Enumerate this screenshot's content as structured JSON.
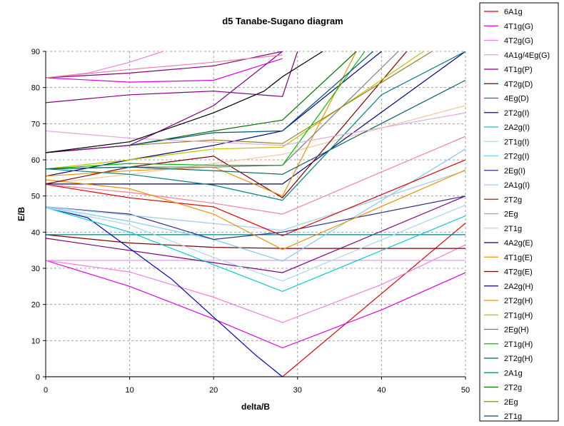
{
  "chart_data": {
    "type": "line",
    "title": "d5 Tanabe-Sugano diagram",
    "xlabel": "delta/B",
    "ylabel": "E/B",
    "xlim": [
      0,
      50
    ],
    "ylim": [
      0,
      90
    ],
    "xticks": [
      0,
      10,
      20,
      30,
      40,
      50
    ],
    "yticks": [
      0,
      10,
      20,
      30,
      40,
      50,
      60,
      70,
      80,
      90
    ],
    "grid": true,
    "legend_position": "right",
    "series": [
      {
        "name": "6A1g",
        "color": "#e00000",
        "x": [
          0,
          28.2,
          50
        ],
        "y": [
          0,
          0,
          42.5
        ]
      },
      {
        "name": "4T1g(G)",
        "color": "#e000e0",
        "x": [
          0,
          10,
          20,
          28.2,
          40,
          50
        ],
        "y": [
          32.2,
          25,
          16,
          8,
          18.5,
          28.8
        ]
      },
      {
        "name": "4T2g(G)",
        "color": "#f080e0",
        "x": [
          0,
          10,
          20,
          28.2,
          40,
          50
        ],
        "y": [
          32.2,
          29,
          22,
          15,
          25.5,
          36.5
        ]
      },
      {
        "name": "4A1g/4Eg(G)",
        "color": "#d8a0e8",
        "x": [
          0,
          28.2,
          50
        ],
        "y": [
          32.2,
          32.2,
          32.2
        ]
      },
      {
        "name": "4T1g(P)",
        "color": "#800080",
        "x": [
          0,
          28.2,
          50
        ],
        "y": [
          38.3,
          28.8,
          50
        ]
      },
      {
        "name": "4T2g(D)",
        "color": "#800000",
        "x": [
          0,
          10,
          20,
          28.2,
          50
        ],
        "y": [
          39.3,
          37,
          35.8,
          35.5,
          35.5
        ]
      },
      {
        "name": "4Eg(D)",
        "color": "#008080",
        "x": [
          0,
          28.2,
          50
        ],
        "y": [
          39.3,
          39.3,
          39.3
        ]
      },
      {
        "name": "2T2g(I)",
        "color": "#0000c0",
        "x": [
          0,
          5,
          15,
          25,
          28.2
        ],
        "y": [
          46.8,
          44,
          27,
          6,
          0
        ]
      },
      {
        "name": "2A2g(I)",
        "color": "#00c8d8",
        "x": [
          0,
          10,
          20,
          28.2,
          50
        ],
        "y": [
          46.8,
          40,
          31,
          23.6,
          44.5
        ]
      },
      {
        "name": "2T1g(I)",
        "color": "#a8d8f0",
        "x": [
          0,
          10,
          20,
          28.2,
          50
        ],
        "y": [
          46.8,
          42,
          33,
          26.5,
          47.5
        ]
      },
      {
        "name": "2T2g(I)",
        "color": "#80c8f0",
        "x": [
          0,
          10,
          20,
          28.2,
          50
        ],
        "y": [
          47,
          43,
          38,
          32,
          63
        ]
      },
      {
        "name": "2Eg(I)",
        "color": "#303090",
        "x": [
          0,
          10,
          20,
          28.2,
          50
        ],
        "y": [
          47,
          45,
          38,
          40,
          50
        ]
      },
      {
        "name": "2A1g(I)",
        "color": "#a0c8f0",
        "x": [
          0,
          28.2,
          50
        ],
        "y": [
          47,
          40.5,
          57
        ]
      },
      {
        "name": "2T2g",
        "color": "#e00000",
        "x": [
          0,
          10,
          20,
          28.2,
          50
        ],
        "y": [
          53.2,
          49.5,
          47,
          39,
          60
        ]
      },
      {
        "name": "2Eg",
        "color": "#f080a0",
        "x": [
          0,
          10,
          20,
          28.2,
          50
        ],
        "y": [
          53.2,
          51,
          48,
          45,
          66.5
        ]
      },
      {
        "name": "2T1g",
        "color": "#f0c8a0",
        "x": [
          0,
          10,
          20,
          28.2,
          50
        ],
        "y": [
          53.5,
          56,
          59,
          61.5,
          75
        ]
      },
      {
        "name": "4A2g(E)",
        "color": "#000080",
        "x": [
          0,
          28.2,
          50
        ],
        "y": [
          53.3,
          53.3,
          90
        ]
      },
      {
        "name": "4T1g(E)",
        "color": "#f09000",
        "x": [
          0,
          10,
          20,
          28.2,
          50
        ],
        "y": [
          54.5,
          52,
          45,
          35.2,
          57.2
        ]
      },
      {
        "name": "4T2g(E)",
        "color": "#800000",
        "x": [
          0,
          10,
          20,
          28.2,
          43
        ],
        "y": [
          53.3,
          58,
          61,
          49.5,
          90
        ]
      },
      {
        "name": "2A2g(H)",
        "color": "#000080",
        "x": [
          0,
          10,
          20,
          28.2,
          40
        ],
        "y": [
          55.5,
          60,
          64,
          68,
          90
        ]
      },
      {
        "name": "2T2g(H)",
        "color": "#f09000",
        "x": [
          0,
          10,
          20,
          28.2,
          37
        ],
        "y": [
          55.5,
          57,
          58,
          50,
          90
        ]
      },
      {
        "name": "2T1g(H)",
        "color": "#c0c000",
        "x": [
          0,
          10,
          20,
          28.2,
          45
        ],
        "y": [
          57.5,
          60,
          63,
          63.5,
          90
        ]
      },
      {
        "name": "2Eg(H)",
        "color": "#808080",
        "x": [
          0,
          10,
          20,
          28.2,
          42
        ],
        "y": [
          57.5,
          58,
          58,
          58.5,
          90
        ]
      },
      {
        "name": "2T1g(H)",
        "color": "#00c000",
        "x": [
          0,
          10,
          20,
          28.2,
          38
        ],
        "y": [
          57.5,
          59,
          58.5,
          58.5,
          90
        ]
      },
      {
        "name": "2T2g(H)",
        "color": "#006060",
        "x": [
          0,
          10,
          20,
          28.2,
          50
        ],
        "y": [
          57.5,
          58,
          57,
          56,
          82
        ]
      },
      {
        "name": "2A1g",
        "color": "#008080",
        "x": [
          0,
          10,
          20,
          28.2,
          40,
          50
        ],
        "y": [
          57.5,
          56,
          53,
          48.8,
          78,
          90
        ]
      },
      {
        "name": "2T2g",
        "color": "#007000",
        "x": [
          0,
          10,
          20,
          28.2,
          37
        ],
        "y": [
          62,
          64,
          68,
          71,
          90
        ]
      },
      {
        "name": "2Eg",
        "color": "#908020",
        "x": [
          0,
          10,
          20,
          28.2,
          46
        ],
        "y": [
          62,
          64,
          65.5,
          64.5,
          90
        ]
      },
      {
        "name": "2T1g",
        "color": "#005080",
        "x": [
          0,
          10,
          20,
          28.2,
          39
        ],
        "y": [
          62,
          64,
          67.5,
          68,
          90
        ]
      },
      {
        "name": "",
        "color": "#e0a8e0",
        "x": [
          0,
          10,
          28.2,
          50
        ],
        "y": [
          68,
          66,
          64,
          73
        ]
      },
      {
        "name": "",
        "color": "#800080",
        "x": [
          0,
          10,
          20,
          28.2,
          30
        ],
        "y": [
          75.8,
          78,
          79,
          77.5,
          90
        ]
      },
      {
        "name": "",
        "color": "#800080",
        "x": [
          0,
          10,
          20,
          28.2
        ],
        "y": [
          62,
          64,
          75,
          90
        ]
      },
      {
        "name": "",
        "color": "#000000",
        "x": [
          0,
          10,
          20,
          26,
          28.2,
          33
        ],
        "y": [
          62,
          65,
          73,
          79,
          83,
          90
        ]
      },
      {
        "name": "",
        "color": "#e000e0",
        "x": [
          0,
          10,
          20,
          28.2
        ],
        "y": [
          82.7,
          81.5,
          82,
          88
        ]
      },
      {
        "name": "",
        "color": "#800080",
        "x": [
          0,
          10,
          20,
          28.2
        ],
        "y": [
          82.7,
          84,
          86,
          90
        ]
      },
      {
        "name": "",
        "color": "#f080e0",
        "x": [
          0,
          5,
          10,
          14
        ],
        "y": [
          82.7,
          84,
          87,
          90
        ]
      },
      {
        "name": "",
        "color": "#f080a0",
        "x": [
          0,
          10,
          20,
          28.2
        ],
        "y": [
          82.7,
          85,
          87,
          89
        ]
      }
    ]
  }
}
